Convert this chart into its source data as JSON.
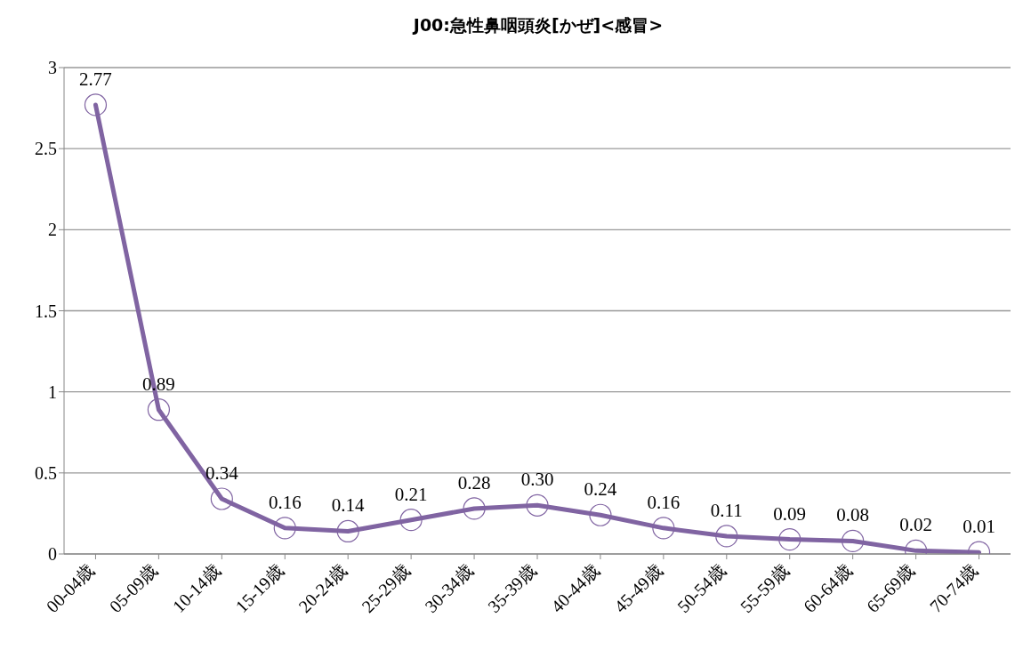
{
  "chart_data": {
    "type": "line",
    "title": "J00:急性鼻咽頭炎[かぜ]<感冒>",
    "categories": [
      "00-04歳",
      "05-09歳",
      "10-14歳",
      "15-19歳",
      "20-24歳",
      "25-29歳",
      "30-34歳",
      "35-39歳",
      "40-44歳",
      "45-49歳",
      "50-54歳",
      "55-59歳",
      "60-64歳",
      "65-69歳",
      "70-74歳"
    ],
    "series": [
      {
        "color": "#8064a2",
        "values": [
          2.77,
          0.89,
          0.34,
          0.16,
          0.14,
          0.21,
          0.28,
          0.3,
          0.24,
          0.16,
          0.11,
          0.09,
          0.08,
          0.02,
          0.01
        ],
        "value_labels": [
          "2.77",
          "0.89",
          "0.34",
          "0.16",
          "0.14",
          "0.21",
          "0.28",
          "0.30",
          "0.24",
          "0.16",
          "0.11",
          "0.09",
          "0.08",
          "0.02",
          "0.01"
        ]
      }
    ],
    "ylim": [
      0,
      3
    ],
    "yticks": [
      0,
      0.5,
      1,
      1.5,
      2,
      2.5,
      3
    ],
    "grid": "y",
    "legend": false,
    "marker": "circle",
    "line_style": "solid"
  }
}
